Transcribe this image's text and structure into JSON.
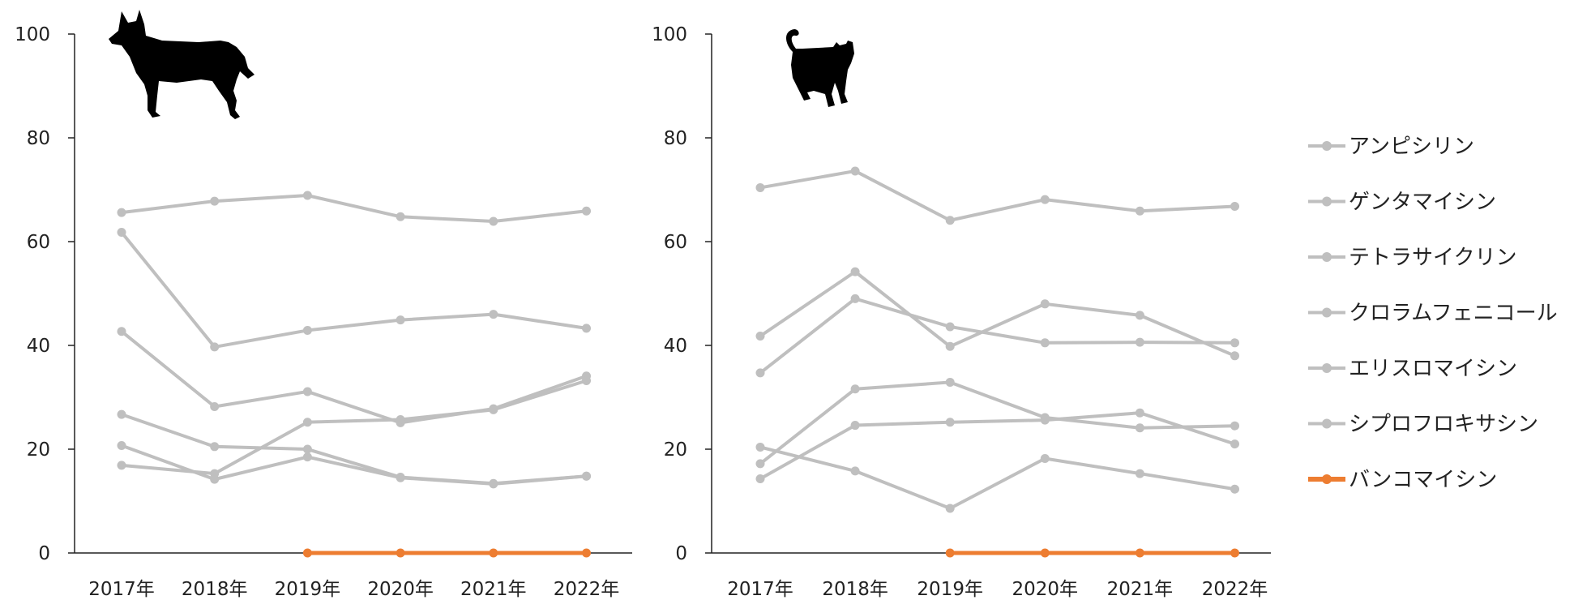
{
  "colors": {
    "gray": "#bfbfbf",
    "highlight": "#ed7d31",
    "axis": "#222222"
  },
  "legend": {
    "items": [
      {
        "name": "アンピシリン",
        "color": "#bfbfbf"
      },
      {
        "name": "ゲンタマイシン",
        "color": "#bfbfbf"
      },
      {
        "name": "テトラサイクリン",
        "color": "#bfbfbf"
      },
      {
        "name": "クロラムフェニコール",
        "color": "#bfbfbf"
      },
      {
        "name": "エリスロマイシン",
        "color": "#bfbfbf"
      },
      {
        "name": "シプロフロキサシン",
        "color": "#bfbfbf"
      },
      {
        "name": "バンコマイシン",
        "color": "#ed7d31"
      }
    ]
  },
  "chart_data": [
    {
      "type": "line",
      "panel": "dog",
      "icon": "dog-silhouette-icon",
      "categories": [
        "2017年",
        "2018年",
        "2019年",
        "2020年",
        "2021年",
        "2022年"
      ],
      "ylim": [
        0,
        100
      ],
      "yticks": [
        "0",
        "20",
        "40",
        "60",
        "80",
        "100"
      ],
      "series": [
        {
          "values": [
            65.6,
            67.8,
            68.9,
            64.8,
            63.9,
            65.9
          ]
        },
        {
          "values": [
            61.8,
            39.7,
            42.9,
            44.9,
            46.0,
            43.3
          ]
        },
        {
          "values": [
            42.7,
            28.2,
            31.1,
            25.1,
            27.8,
            34.1
          ]
        },
        {
          "values": [
            26.7,
            20.5,
            20.0,
            14.6,
            13.4,
            14.8
          ]
        },
        {
          "values": [
            20.7,
            14.2,
            18.5,
            14.5,
            13.3,
            14.8
          ]
        },
        {
          "values": [
            16.9,
            15.3,
            25.2,
            25.7,
            27.6,
            33.2
          ]
        },
        {
          "values": [
            null,
            null,
            0,
            0,
            0,
            0
          ]
        }
      ]
    },
    {
      "type": "line",
      "panel": "cat",
      "icon": "cat-silhouette-icon",
      "categories": [
        "2017年",
        "2018年",
        "2019年",
        "2020年",
        "2021年",
        "2022年"
      ],
      "ylim": [
        0,
        100
      ],
      "yticks": [
        "0",
        "20",
        "40",
        "60",
        "80",
        "100"
      ],
      "series": [
        {
          "values": [
            70.4,
            73.6,
            64.1,
            68.1,
            65.9,
            66.8
          ]
        },
        {
          "values": [
            41.8,
            54.2,
            39.8,
            48.0,
            45.8,
            38.0
          ]
        },
        {
          "values": [
            34.7,
            49.0,
            43.6,
            40.5,
            40.6,
            40.5
          ]
        },
        {
          "values": [
            20.4,
            15.8,
            8.6,
            18.2,
            15.3,
            12.3
          ]
        },
        {
          "values": [
            17.2,
            31.6,
            32.9,
            26.1,
            24.1,
            24.5
          ]
        },
        {
          "values": [
            14.3,
            24.6,
            25.2,
            25.6,
            27.0,
            21.0
          ]
        },
        {
          "values": [
            null,
            null,
            0,
            0,
            0,
            0
          ]
        }
      ]
    }
  ]
}
